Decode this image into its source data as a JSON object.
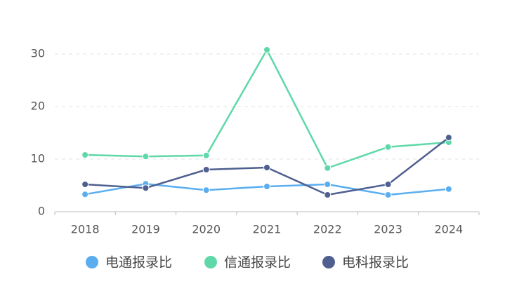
{
  "chart_data": {
    "type": "line",
    "categories": [
      "2018",
      "2019",
      "2020",
      "2021",
      "2022",
      "2023",
      "2024"
    ],
    "series": [
      {
        "name": "电通报录比",
        "color": "#5aaef0",
        "values": [
          3.3,
          5.3,
          4.1,
          4.8,
          5.2,
          3.2,
          4.3
        ]
      },
      {
        "name": "信通报录比",
        "color": "#5ed8a8",
        "values": [
          10.8,
          10.5,
          10.7,
          30.8,
          8.3,
          12.3,
          13.2
        ]
      },
      {
        "name": "电科报录比",
        "color": "#4f5f8f",
        "values": [
          5.2,
          4.5,
          8.0,
          8.4,
          3.2,
          5.2,
          14.1
        ]
      }
    ],
    "ylim": [
      0,
      30
    ],
    "yticks": [
      0,
      10,
      20,
      30
    ],
    "grid": true,
    "legend": "bottom"
  }
}
